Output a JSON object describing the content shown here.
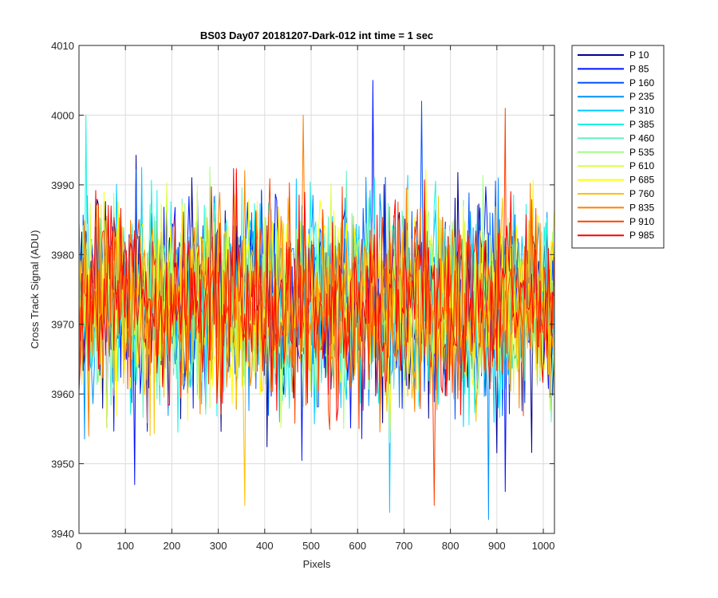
{
  "chart_data": {
    "type": "line",
    "title": "BS03 Day07 20181207-Dark-012 int time = 1 sec",
    "xlabel": "Pixels",
    "ylabel": "Cross Track Signal (ADU)",
    "xlim": [
      0,
      1024
    ],
    "ylim": [
      3940,
      4010
    ],
    "xticks": [
      0,
      100,
      200,
      300,
      400,
      500,
      600,
      700,
      800,
      900,
      1000
    ],
    "yticks": [
      3940,
      3950,
      3960,
      3970,
      3980,
      3990,
      4000,
      4010
    ],
    "grid": true,
    "legend_position": "outside-right",
    "mean": 3973,
    "sigma": 7,
    "series": [
      {
        "name": "P 10",
        "color": "#00008f"
      },
      {
        "name": "P 85",
        "color": "#0014ff"
      },
      {
        "name": "P 160",
        "color": "#0054ff"
      },
      {
        "name": "P 235",
        "color": "#0090ff"
      },
      {
        "name": "P 310",
        "color": "#00c8ff"
      },
      {
        "name": "P 385",
        "color": "#18f4e4"
      },
      {
        "name": "P 460",
        "color": "#60f0c0"
      },
      {
        "name": "P 535",
        "color": "#a0ff80"
      },
      {
        "name": "P 610",
        "color": "#d8ff40"
      },
      {
        "name": "P 685",
        "color": "#ffff00"
      },
      {
        "name": "P 760",
        "color": "#ffc000"
      },
      {
        "name": "P 835",
        "color": "#ff8000"
      },
      {
        "name": "P 910",
        "color": "#ff4000"
      },
      {
        "name": "P 985",
        "color": "#ff0000"
      }
    ],
    "spikes": [
      {
        "series": "P 85",
        "x": 632,
        "y": 4005
      },
      {
        "series": "P 160",
        "x": 738,
        "y": 4002
      },
      {
        "series": "P 910",
        "x": 917,
        "y": 4001
      },
      {
        "series": "P 835",
        "x": 482,
        "y": 4000
      },
      {
        "series": "P 385",
        "x": 16,
        "y": 4000
      },
      {
        "series": "P 910",
        "x": 766,
        "y": 3944
      },
      {
        "series": "P 760",
        "x": 358,
        "y": 3944
      },
      {
        "series": "P 310",
        "x": 668,
        "y": 3943
      },
      {
        "series": "P 235",
        "x": 882,
        "y": 3942
      },
      {
        "series": "P 85",
        "x": 917,
        "y": 3946
      },
      {
        "series": "P 85",
        "x": 120,
        "y": 3947
      }
    ]
  }
}
